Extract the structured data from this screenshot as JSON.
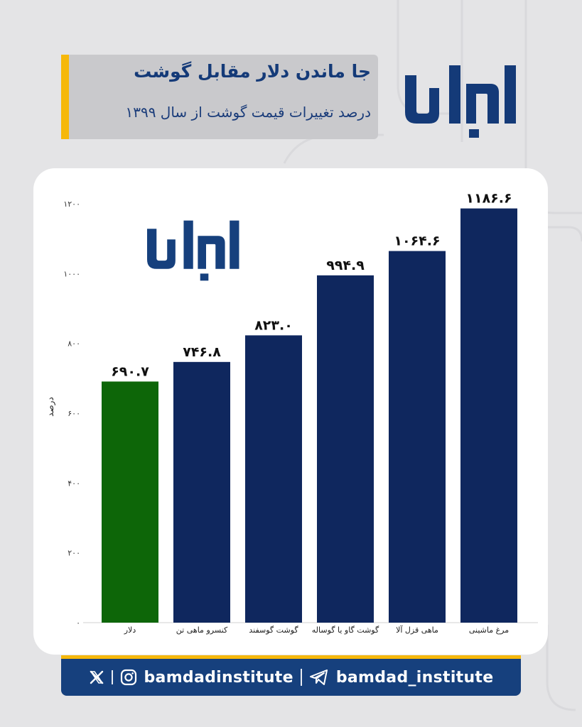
{
  "header": {
    "title": "جا ماندن دلار مقابل گوشت",
    "subtitle": "درصد تغییرات قیمت گوشت از سال ۱۳۹۹"
  },
  "logo": {
    "name": "بامداد",
    "color": "#143a78"
  },
  "footer": {
    "instagram_handle": "bamdadinstitute",
    "telegram_handle": "bamdad_institute",
    "icons": [
      "x-icon",
      "instagram-icon",
      "telegram-icon"
    ]
  },
  "colors": {
    "bar_default": "#0f275e",
    "bar_highlight": "#0d6608",
    "accent": "#f6b80b",
    "brand": "#16407d"
  },
  "chart_data": {
    "type": "bar",
    "ylabel": "درصد",
    "ylim": [
      0,
      1200
    ],
    "yticks": [
      0,
      200,
      400,
      600,
      800,
      1000,
      1200
    ],
    "ytick_labels": [
      "۰",
      "۲۰۰",
      "۴۰۰",
      "۶۰۰",
      "۸۰۰",
      "۱۰۰۰",
      "۱۲۰۰"
    ],
    "grid": false,
    "categories": [
      "دلار",
      "کنسرو ماهی تن",
      "گوشت گوسفند",
      "گوشت گاو یا گوساله",
      "ماهی قزل آلا",
      "مرغ ماشینی"
    ],
    "values": [
      690.7,
      746.8,
      823.0,
      994.9,
      1064.6,
      1186.6
    ],
    "value_labels": [
      "۶۹۰.۷",
      "۷۴۶.۸",
      "۸۲۳.۰",
      "۹۹۴.۹",
      "۱۰۶۴.۶",
      "۱۱۸۶.۶"
    ],
    "highlight_index": 0
  }
}
